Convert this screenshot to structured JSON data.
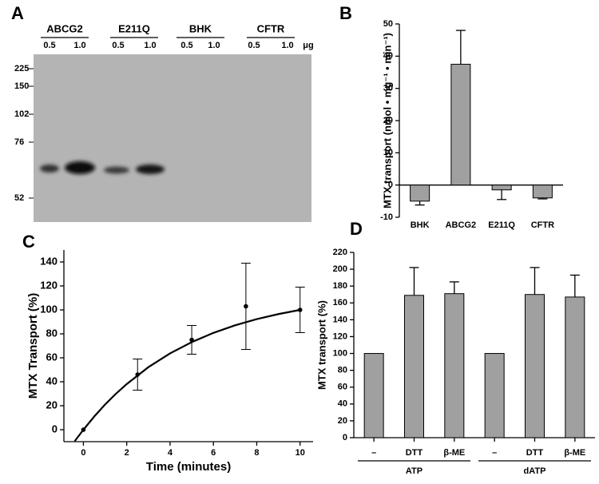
{
  "panel_labels": [
    "A",
    "B",
    "C",
    "D"
  ],
  "blot": {
    "lanes": [
      {
        "name": "ABCG2",
        "doses": [
          "0.5",
          "1.0"
        ]
      },
      {
        "name": "E211Q",
        "doses": [
          "0.5",
          "1.0"
        ]
      },
      {
        "name": "BHK",
        "doses": [
          "0.5",
          "1.0"
        ]
      },
      {
        "name": "CFTR",
        "doses": [
          "0.5",
          "1.0"
        ]
      }
    ],
    "unit": "μg",
    "markers": [
      "225",
      "150",
      "102",
      "76",
      "52"
    ]
  },
  "chart_data": [
    {
      "type": "bar",
      "ylabel": "MTX transport (nmol • mg⁻¹ • min⁻¹)",
      "categories": [
        "BHK",
        "ABCG2",
        "E211Q",
        "CFTR"
      ],
      "values": [
        -5,
        37.5,
        -1.5,
        -4
      ],
      "errors": [
        1.2,
        10.5,
        3,
        0.3
      ],
      "color": "#a0a0a0",
      "ylim": [
        -10,
        50
      ],
      "yticks": [
        -10,
        0,
        10,
        20,
        30,
        40,
        50
      ]
    },
    {
      "type": "scatter",
      "xlabel": "Time (minutes)",
      "ylabel": "MTX Transport (%)",
      "x": [
        0,
        2.5,
        5,
        7.5,
        10
      ],
      "values": [
        0,
        46,
        75,
        103,
        100
      ],
      "errors": [
        0,
        13,
        12,
        36,
        19
      ],
      "color": "#000000",
      "fit": {
        "x": [
          -0.4,
          0,
          0.5,
          1,
          1.5,
          2,
          3,
          4,
          5,
          6,
          7,
          8,
          9,
          10
        ],
        "values": [
          -9.6,
          0,
          11,
          21,
          30,
          38.1,
          52.2,
          63.7,
          73.1,
          80.8,
          87.1,
          92.3,
          96.5,
          100
        ]
      },
      "xlim": [
        -0.9,
        10.6
      ],
      "xticks": [
        0,
        2,
        4,
        6,
        8,
        10
      ],
      "ylim": [
        -10,
        150
      ],
      "yticks": [
        0,
        20,
        40,
        60,
        80,
        100,
        120,
        140
      ]
    },
    {
      "type": "bar",
      "ylabel": "MTX transport (%)",
      "categories": [
        "–",
        "DTT",
        "β-ME",
        "–",
        "DTT",
        "β-ME"
      ],
      "groups": [
        "ATP",
        "dATP"
      ],
      "values": [
        100,
        169,
        171,
        100,
        170,
        167
      ],
      "errors": [
        0,
        33,
        14,
        0,
        32,
        26
      ],
      "color": "#a0a0a0",
      "ylim": [
        0,
        220
      ],
      "yticks": [
        0,
        20,
        40,
        60,
        80,
        100,
        120,
        140,
        160,
        180,
        200,
        220
      ]
    }
  ]
}
